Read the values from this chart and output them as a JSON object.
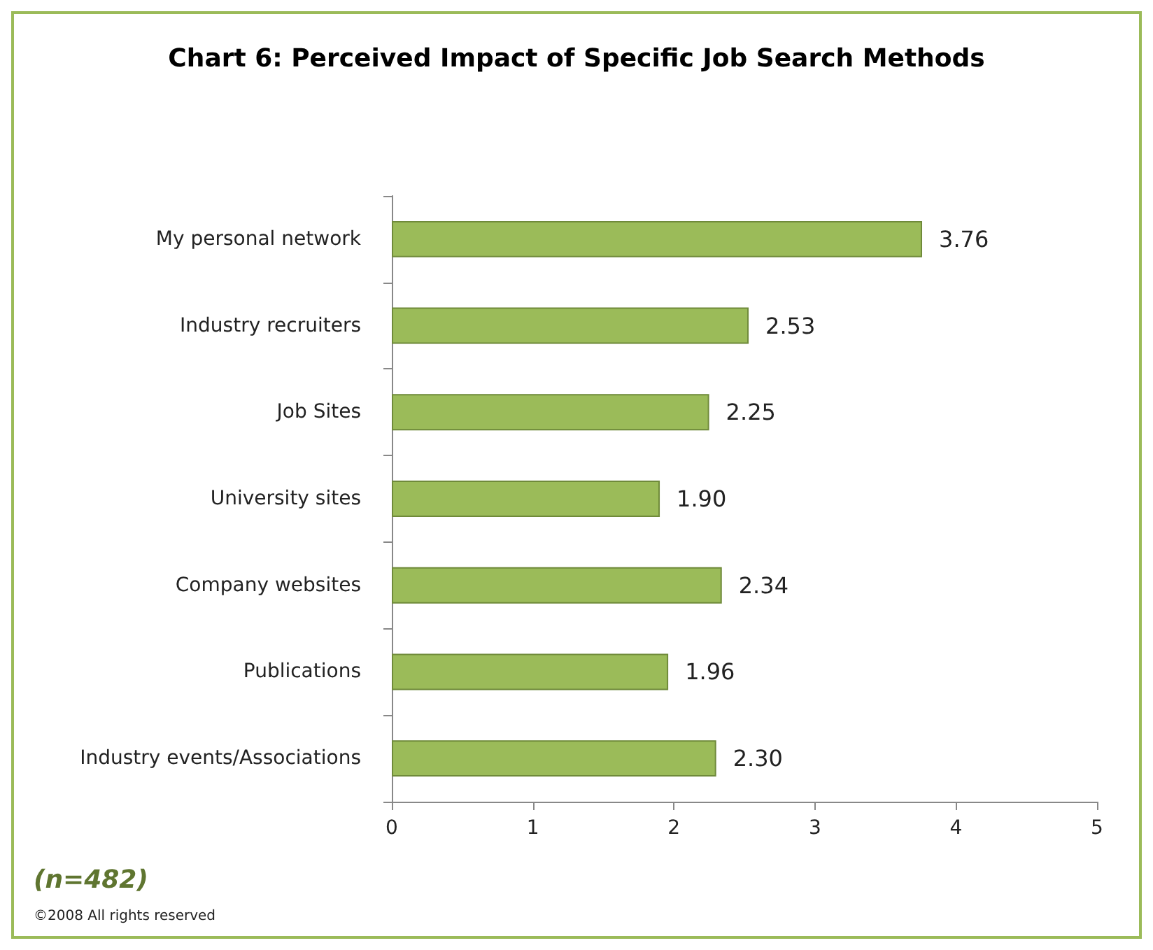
{
  "chart_data": {
    "type": "bar",
    "orientation": "horizontal",
    "title": "Chart 6: Perceived Impact of Specific Job Search Methods",
    "categories": [
      "My personal network",
      "Industry recruiters",
      "Job Sites",
      "University sites",
      "Company websites",
      "Publications",
      "Industry events/Associations"
    ],
    "values": [
      3.76,
      2.53,
      2.25,
      1.9,
      2.34,
      1.96,
      2.3
    ],
    "value_labels": [
      "3.76",
      "2.53",
      "2.25",
      "1.90",
      "2.34",
      "1.96",
      "2.30"
    ],
    "color": "#9bbb59",
    "xlim": [
      0,
      5
    ],
    "xticks": [
      0,
      1,
      2,
      3,
      4,
      5
    ],
    "grid": false,
    "annotations": [
      "(n=482)",
      "©2008 All rights reserved"
    ]
  }
}
